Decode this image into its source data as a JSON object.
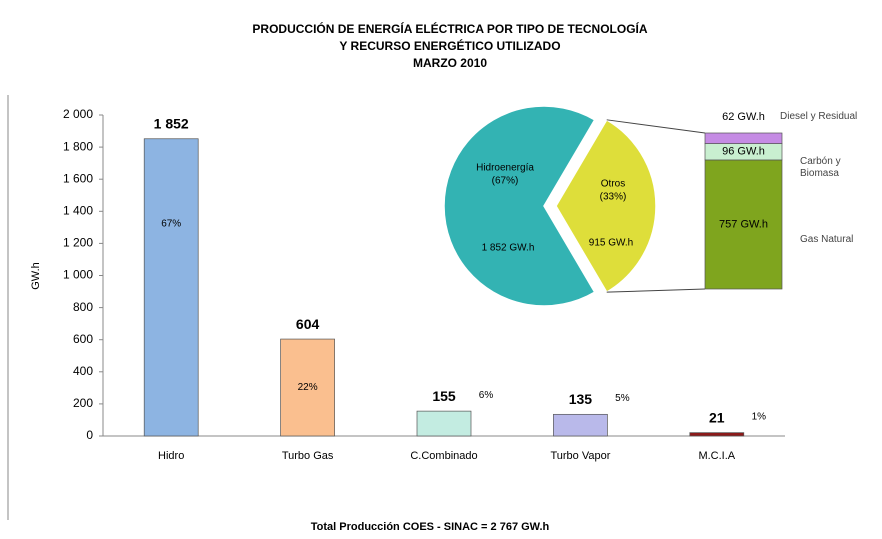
{
  "chart_data": {
    "type": "bar",
    "title": "PRODUCCIÓN DE ENERGÍA ELÉCTRICA POR TIPO DE TECNOLOGÍA",
    "subtitle": "Y RECURSO ENERGÉTICO UTILIZADO",
    "period": "MARZO 2010",
    "y_label": "GW.h",
    "footer": "Total Producción COES - SINAC = 2 767 GW.h",
    "categories": [
      "Hidro",
      "Turbo Gas",
      "C.Combinado",
      "Turbo Vapor",
      "M.C.I.A"
    ],
    "values": [
      1852,
      604,
      155,
      135,
      21
    ],
    "value_labels": [
      "1 852",
      "604",
      "155",
      "135",
      "21"
    ],
    "share_labels": [
      "67%",
      "22%",
      "6%",
      "5%",
      "1%"
    ],
    "colors": [
      "#8db4e2",
      "#fabf8f",
      "#c3ece1",
      "#b9b9ea",
      "#8b1a1a"
    ],
    "ylim": [
      0,
      2000
    ],
    "yticks": [
      0,
      200,
      400,
      600,
      800,
      {
        "value": 1000,
        "label": "1 000"
      },
      {
        "value": 1200,
        "label": "1 200"
      },
      {
        "value": 1400,
        "label": "1 400"
      },
      {
        "value": 1600,
        "label": "1 600"
      },
      {
        "value": 1800,
        "label": "1 800"
      },
      {
        "value": 2000,
        "label": "2 000"
      }
    ],
    "pie": {
      "type": "pie",
      "slices": [
        {
          "name": "Hidroenergía",
          "share_label": "(67%)",
          "value": 1852,
          "value_label": "1 852 GW.h",
          "color": "#33b3b3"
        },
        {
          "name": "Otros",
          "share_label": "(33%)",
          "value": 915,
          "value_label": "915 GW.h",
          "color": "#dede3a"
        }
      ]
    },
    "stack": {
      "type": "stacked_bar",
      "segments": [
        {
          "name": "Gas Natural",
          "value": 757,
          "value_label": "757 GW.h",
          "color": "#7fa51e"
        },
        {
          "name": "Carbón y Biomasa",
          "value": 96,
          "value_label": "96 GW.h",
          "color": "#c9efd0"
        },
        {
          "name": "Diesel y Residual",
          "value": 62,
          "value_label": "62 GW.h",
          "color": "#c58be4"
        }
      ]
    }
  }
}
